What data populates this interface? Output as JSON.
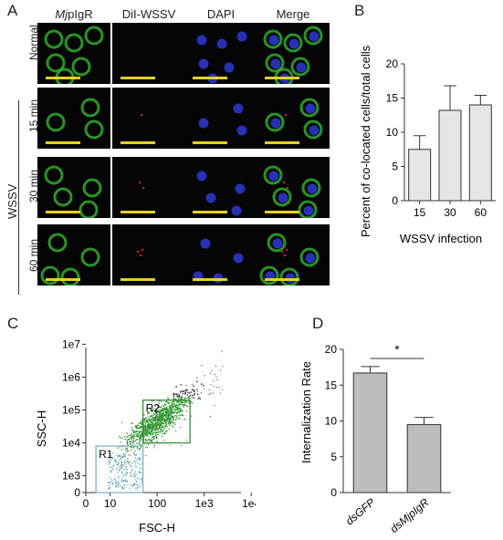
{
  "panels": {
    "A": "A",
    "B": "B",
    "C": "C",
    "D": "D"
  },
  "panelA": {
    "columns": [
      {
        "prefix": "Mj",
        "rest": "pIgR"
      },
      {
        "prefix": "",
        "rest": "DiI-WSSV"
      },
      {
        "prefix": "",
        "rest": "DAPI"
      },
      {
        "prefix": "",
        "rest": "Merge"
      }
    ],
    "rows": [
      "Normal",
      "15 min",
      "30 min",
      "60 min"
    ],
    "group_label": "WSSV",
    "channel_colors": {
      "green": "#2fae2a",
      "red": "#d42020",
      "blue": "#2a36c8"
    }
  },
  "chart_data": [
    {
      "type": "bar",
      "panel": "B",
      "categories": [
        "15",
        "30",
        "60"
      ],
      "values": [
        7.5,
        13.2,
        14.0
      ],
      "error": [
        2.0,
        3.6,
        1.4
      ],
      "ylabel": "Percent of co-located cells/total cells",
      "xlabel": "WSSV infection",
      "ylim": [
        0,
        20
      ],
      "yticks": [
        "0",
        "5",
        "10",
        "15",
        "20"
      ],
      "bar_color": "#e6e6e6"
    },
    {
      "type": "scatter",
      "panel": "C",
      "xlabel": "FSC-H",
      "ylabel": "SSC-H",
      "xticks": [
        "0",
        "10",
        "100",
        "1e3",
        "1e4"
      ],
      "yticks": [
        "0",
        "1e3",
        "1e4",
        "1e5",
        "1e6",
        "1e7"
      ],
      "scale": "log",
      "gates": [
        {
          "name": "R1",
          "color": "#7fb3c2",
          "x_range": [
            5,
            50
          ],
          "y_range": [
            0,
            8000
          ]
        },
        {
          "name": "R2",
          "color": "#3c8a3c",
          "x_range": [
            50,
            500
          ],
          "y_range": [
            10000,
            200000
          ]
        }
      ]
    },
    {
      "type": "bar",
      "panel": "D",
      "categories": [
        "dsGFP",
        "dsMjpIgR"
      ],
      "values": [
        16.7,
        9.5
      ],
      "error": [
        0.9,
        1.0
      ],
      "ylabel": "Internalization Rate",
      "ylim": [
        0,
        20
      ],
      "yticks": [
        "0",
        "5",
        "10",
        "15",
        "20"
      ],
      "significance": "*",
      "bar_color": "#bdbdbd"
    }
  ]
}
